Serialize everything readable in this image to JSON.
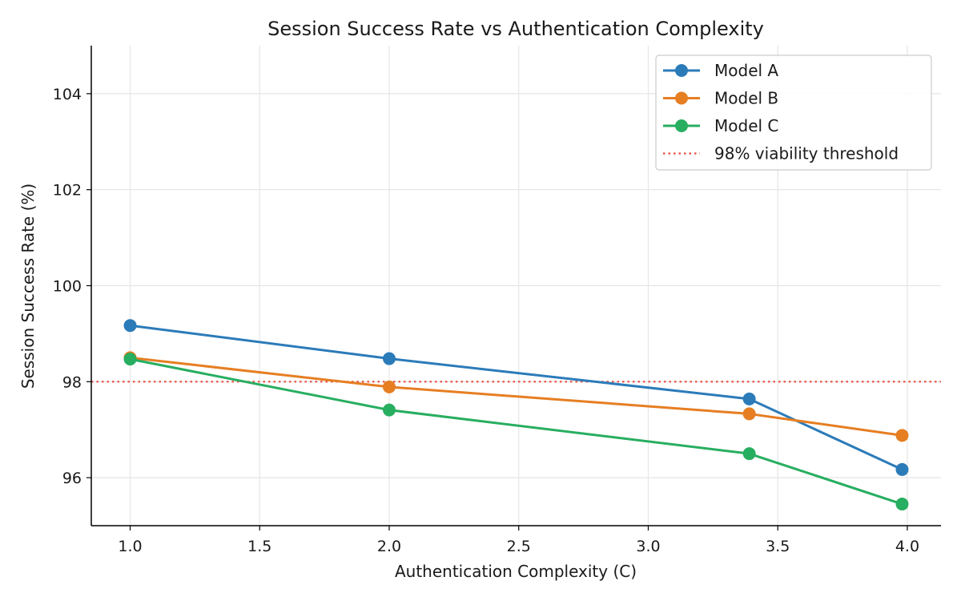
{
  "chart_data": {
    "type": "line",
    "title": "Session Success Rate vs Authentication Complexity",
    "xlabel": "Authentication Complexity (C)",
    "ylabel": "Session Success Rate (%)",
    "xlim": [
      0.85,
      4.13
    ],
    "ylim": [
      95.0,
      105.0
    ],
    "xticks": [
      "1.0",
      "1.5",
      "2.0",
      "2.5",
      "3.0",
      "3.5",
      "4.0"
    ],
    "yticks": [
      "96",
      "98",
      "100",
      "102",
      "104"
    ],
    "grid": true,
    "legend_position": "top-right",
    "x": [
      1.0,
      2.0,
      3.39,
      3.98
    ],
    "series": [
      {
        "name": "Model A",
        "color": "#2b7bb9",
        "values": [
          99.17,
          98.48,
          97.64,
          96.17
        ]
      },
      {
        "name": "Model B",
        "color": "#e67e22",
        "values": [
          98.5,
          97.89,
          97.33,
          96.88
        ]
      },
      {
        "name": "Model C",
        "color": "#27ae60",
        "values": [
          98.47,
          97.41,
          96.5,
          95.45
        ]
      }
    ],
    "threshold": {
      "name": "98% viability threshold",
      "value": 98,
      "color": "#e74c3c",
      "style": "dotted"
    }
  }
}
